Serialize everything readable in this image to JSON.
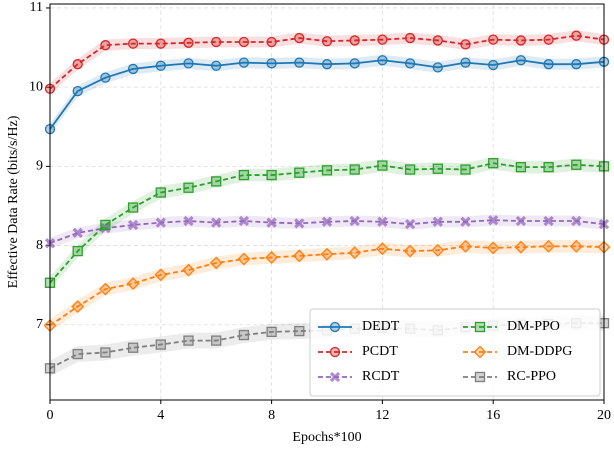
{
  "chart_data": {
    "type": "line",
    "xlabel": "Epochs*100",
    "ylabel": "Effective Data Rate (bits/s/Hz)",
    "x": [
      0,
      1,
      2,
      3,
      4,
      5,
      6,
      7,
      8,
      9,
      10,
      11,
      12,
      13,
      14,
      15,
      16,
      17,
      18,
      19,
      20
    ],
    "xlim": [
      0,
      20
    ],
    "xticks": [
      0,
      4,
      8,
      12,
      16,
      20
    ],
    "ylim": [
      6.05,
      11.05
    ],
    "yticks": [
      7,
      8,
      9,
      10,
      11
    ],
    "grid": true,
    "legend": "lower right",
    "series": [
      {
        "name": "DEDT",
        "color": "#1f77b4",
        "marker": "circle",
        "linestyle": "solid",
        "band": 0.07,
        "values": [
          9.47,
          9.95,
          10.12,
          10.23,
          10.27,
          10.3,
          10.27,
          10.31,
          10.3,
          10.31,
          10.29,
          10.3,
          10.34,
          10.3,
          10.25,
          10.31,
          10.28,
          10.34,
          10.29,
          10.29,
          10.32
        ]
      },
      {
        "name": "PCDT",
        "color": "#d62728",
        "marker": "circle",
        "linestyle": "dashed",
        "band": 0.07,
        "values": [
          9.98,
          10.29,
          10.53,
          10.55,
          10.55,
          10.56,
          10.57,
          10.57,
          10.57,
          10.62,
          10.58,
          10.59,
          10.6,
          10.62,
          10.59,
          10.54,
          10.6,
          10.59,
          10.6,
          10.65,
          10.6
        ]
      },
      {
        "name": "RCDT",
        "color": "#9467bd",
        "marker": "x",
        "linestyle": "dashed",
        "band": 0.07,
        "values": [
          8.03,
          8.16,
          8.22,
          8.26,
          8.29,
          8.31,
          8.29,
          8.31,
          8.29,
          8.28,
          8.3,
          8.31,
          8.3,
          8.27,
          8.3,
          8.3,
          8.32,
          8.31,
          8.31,
          8.31,
          8.27
        ]
      },
      {
        "name": "DM-PPO",
        "color": "#2ca02c",
        "marker": "square",
        "linestyle": "dashed",
        "band": 0.08,
        "values": [
          7.53,
          7.93,
          8.26,
          8.48,
          8.67,
          8.73,
          8.81,
          8.89,
          8.89,
          8.92,
          8.95,
          8.96,
          9.01,
          8.96,
          8.97,
          8.96,
          9.04,
          8.99,
          8.99,
          9.02,
          9.0
        ]
      },
      {
        "name": "DM-DDPG",
        "color": "#ff7f0e",
        "marker": "diamond",
        "linestyle": "dashed",
        "band": 0.08,
        "values": [
          6.99,
          7.23,
          7.45,
          7.52,
          7.63,
          7.69,
          7.78,
          7.83,
          7.85,
          7.87,
          7.89,
          7.91,
          7.96,
          7.93,
          7.94,
          7.99,
          7.97,
          7.98,
          7.99,
          7.99,
          7.98
        ]
      },
      {
        "name": "RC-PPO",
        "color": "#7f7f7f",
        "marker": "square",
        "linestyle": "dashed",
        "band": 0.1,
        "values": [
          6.45,
          6.63,
          6.65,
          6.71,
          6.75,
          6.8,
          6.8,
          6.87,
          6.91,
          6.92,
          6.93,
          6.95,
          6.96,
          6.95,
          6.93,
          6.97,
          6.99,
          7.0,
          7.01,
          7.02,
          7.02
        ]
      }
    ]
  }
}
